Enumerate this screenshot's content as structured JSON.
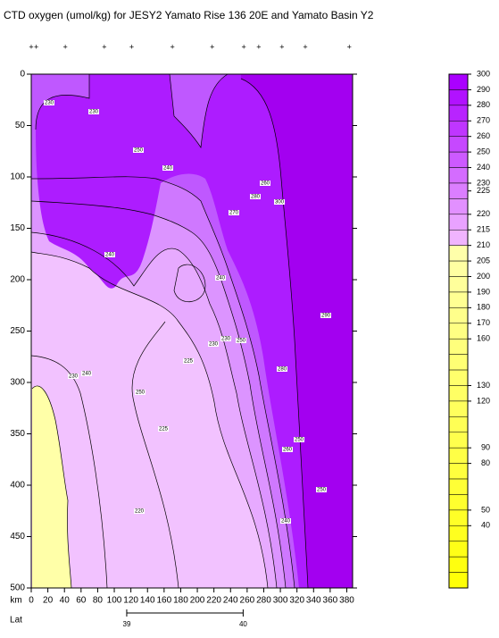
{
  "chart_data": {
    "type": "contour",
    "title": "CTD oxygen (umol/kg) for JESY2 Yamato Rise 136 20E and Yamato Basin Y2",
    "xlabel": "km",
    "x2label": "Lat",
    "xlim": [
      0,
      387
    ],
    "xticks": [
      0,
      20,
      40,
      60,
      80,
      100,
      120,
      140,
      160,
      180,
      200,
      220,
      240,
      260,
      280,
      300,
      320,
      340,
      360,
      380
    ],
    "ylim": [
      500,
      0
    ],
    "yticks": [
      0,
      50,
      100,
      150,
      200,
      250,
      300,
      350,
      400,
      450,
      500
    ],
    "x2lim": [
      38.18,
      40.94
    ],
    "x2ticks": [
      39,
      40
    ],
    "stations": [
      0,
      6,
      41,
      88,
      121,
      170,
      218,
      256,
      274,
      302,
      330,
      383
    ],
    "colorbar": {
      "ticks": [
        300,
        290,
        280,
        270,
        260,
        250,
        240,
        230,
        225,
        220,
        215,
        210,
        205,
        200,
        190,
        180,
        170,
        160,
        130,
        120,
        90,
        80,
        50,
        40
      ]
    },
    "contour_labels": [
      230,
      230,
      250,
      240,
      260,
      280,
      300,
      270,
      240,
      240,
      290,
      230,
      230,
      250,
      225,
      280,
      240,
      230,
      250,
      225,
      250,
      260,
      250,
      220,
      240
    ]
  }
}
